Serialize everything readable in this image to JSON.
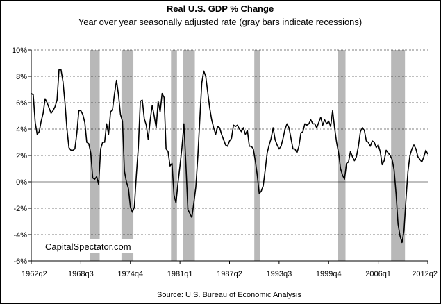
{
  "chart_data": {
    "type": "line",
    "title": "Real U.S. GDP %  Change",
    "subtitle": "Year over year seasonally adjusted rate (gray bars indicate recessions)",
    "source": "Source: U.S. Bureau of Economic Analysis",
    "watermark": "CapitalSpectator.com",
    "xlabel": "",
    "ylabel": "",
    "ylim": [
      -6,
      10
    ],
    "y_ticks": [
      -6,
      -4,
      -2,
      0,
      2,
      4,
      6,
      8,
      10
    ],
    "y_tick_labels": [
      "-6%",
      "-4%",
      "-2%",
      "0%",
      "2%",
      "4%",
      "6%",
      "8%",
      "10%"
    ],
    "x_range": [
      "1962q2",
      "2012q2"
    ],
    "x_tick_labels": [
      "1962q2",
      "1968q3",
      "1974q4",
      "1981q1",
      "1987q2",
      "1993q3",
      "1999q4",
      "2006q1",
      "2012q2"
    ],
    "grid": "horizontal",
    "line_color": "#000000",
    "recession_color": "#b8b8b8",
    "recessions": [
      {
        "start": "1969q4",
        "end": "1970q4"
      },
      {
        "start": "1973q4",
        "end": "1975q1"
      },
      {
        "start": "1980q1",
        "end": "1980q3"
      },
      {
        "start": "1981q3",
        "end": "1982q4"
      },
      {
        "start": "1990q3",
        "end": "1991q1"
      },
      {
        "start": "2001q1",
        "end": "2001q4"
      },
      {
        "start": "2007q4",
        "end": "2009q2"
      }
    ],
    "series": [
      {
        "values": [
          [
            "1962q2",
            6.7
          ],
          [
            "1962q3",
            6.6
          ],
          [
            "1962q4",
            4.5
          ],
          [
            "1963q1",
            3.6
          ],
          [
            "1963q2",
            3.8
          ],
          [
            "1963q3",
            4.6
          ],
          [
            "1963q4",
            5.2
          ],
          [
            "1964q1",
            6.3
          ],
          [
            "1964q2",
            6.0
          ],
          [
            "1964q3",
            5.6
          ],
          [
            "1964q4",
            5.2
          ],
          [
            "1965q1",
            5.4
          ],
          [
            "1965q2",
            5.7
          ],
          [
            "1965q3",
            6.2
          ],
          [
            "1965q4",
            8.5
          ],
          [
            "1966q1",
            8.5
          ],
          [
            "1966q2",
            7.6
          ],
          [
            "1966q3",
            6.0
          ],
          [
            "1966q4",
            4.0
          ],
          [
            "1967q1",
            2.6
          ],
          [
            "1967q2",
            2.4
          ],
          [
            "1967q3",
            2.4
          ],
          [
            "1967q4",
            2.5
          ],
          [
            "1968q1",
            3.7
          ],
          [
            "1968q2",
            5.4
          ],
          [
            "1968q3",
            5.4
          ],
          [
            "1968q4",
            5.1
          ],
          [
            "1969q1",
            4.5
          ],
          [
            "1969q2",
            3.0
          ],
          [
            "1969q3",
            2.9
          ],
          [
            "1969q4",
            2.2
          ],
          [
            "1970q1",
            0.3
          ],
          [
            "1970q2",
            0.2
          ],
          [
            "1970q3",
            0.4
          ],
          [
            "1970q4",
            -0.2
          ],
          [
            "1971q1",
            2.5
          ],
          [
            "1971q2",
            3.0
          ],
          [
            "1971q3",
            3.0
          ],
          [
            "1971q4",
            4.4
          ],
          [
            "1972q1",
            3.6
          ],
          [
            "1972q2",
            5.3
          ],
          [
            "1972q3",
            5.5
          ],
          [
            "1972q4",
            6.7
          ],
          [
            "1973q1",
            7.7
          ],
          [
            "1973q2",
            6.6
          ],
          [
            "1973q3",
            5.1
          ],
          [
            "1973q4",
            4.6
          ],
          [
            "1974q1",
            0.8
          ],
          [
            "1974q2",
            0.0
          ],
          [
            "1974q3",
            -0.5
          ],
          [
            "1974q4",
            -1.9
          ],
          [
            "1975q1",
            -2.3
          ],
          [
            "1975q2",
            -1.9
          ],
          [
            "1975q3",
            0.5
          ],
          [
            "1975q4",
            2.6
          ],
          [
            "1976q1",
            6.1
          ],
          [
            "1976q2",
            6.2
          ],
          [
            "1976q3",
            4.8
          ],
          [
            "1976q4",
            4.3
          ],
          [
            "1977q1",
            3.2
          ],
          [
            "1977q2",
            4.7
          ],
          [
            "1977q3",
            5.8
          ],
          [
            "1977q4",
            5.0
          ],
          [
            "1978q1",
            4.1
          ],
          [
            "1978q2",
            6.1
          ],
          [
            "1978q3",
            5.3
          ],
          [
            "1978q4",
            6.7
          ],
          [
            "1979q1",
            6.4
          ],
          [
            "1979q2",
            2.5
          ],
          [
            "1979q3",
            2.3
          ],
          [
            "1979q4",
            1.2
          ],
          [
            "1980q1",
            1.4
          ],
          [
            "1980q2",
            -1.0
          ],
          [
            "1980q3",
            -1.6
          ],
          [
            "1980q4",
            -0.1
          ],
          [
            "1981q1",
            1.2
          ],
          [
            "1981q2",
            2.6
          ],
          [
            "1981q3",
            4.4
          ],
          [
            "1981q4",
            1.3
          ],
          [
            "1982q1",
            -2.1
          ],
          [
            "1982q2",
            -2.4
          ],
          [
            "1982q3",
            -2.7
          ],
          [
            "1982q4",
            -1.6
          ],
          [
            "1983q1",
            -0.4
          ],
          [
            "1983q2",
            1.9
          ],
          [
            "1983q3",
            4.7
          ],
          [
            "1983q4",
            7.5
          ],
          [
            "1984q1",
            8.4
          ],
          [
            "1984q2",
            8.0
          ],
          [
            "1984q3",
            6.8
          ],
          [
            "1984q4",
            5.6
          ],
          [
            "1985q1",
            4.7
          ],
          [
            "1985q2",
            4.1
          ],
          [
            "1985q3",
            3.6
          ],
          [
            "1985q4",
            4.2
          ],
          [
            "1986q1",
            4.1
          ],
          [
            "1986q2",
            3.6
          ],
          [
            "1986q3",
            3.2
          ],
          [
            "1986q4",
            2.8
          ],
          [
            "1987q1",
            2.7
          ],
          [
            "1987q2",
            3.1
          ],
          [
            "1987q3",
            3.3
          ],
          [
            "1987q4",
            4.3
          ],
          [
            "1988q1",
            4.2
          ],
          [
            "1988q2",
            4.3
          ],
          [
            "1988q3",
            4.0
          ],
          [
            "1988q4",
            3.8
          ],
          [
            "1989q1",
            4.1
          ],
          [
            "1989q2",
            3.6
          ],
          [
            "1989q3",
            3.9
          ],
          [
            "1989q4",
            2.7
          ],
          [
            "1990q1",
            2.7
          ],
          [
            "1990q2",
            2.5
          ],
          [
            "1990q3",
            1.6
          ],
          [
            "1990q4",
            0.5
          ],
          [
            "1991q1",
            -0.9
          ],
          [
            "1991q2",
            -0.7
          ],
          [
            "1991q3",
            -0.3
          ],
          [
            "1991q4",
            0.9
          ],
          [
            "1992q1",
            2.2
          ],
          [
            "1992q2",
            2.8
          ],
          [
            "1992q3",
            3.3
          ],
          [
            "1992q4",
            4.1
          ],
          [
            "1993q1",
            3.2
          ],
          [
            "1993q2",
            2.8
          ],
          [
            "1993q3",
            2.5
          ],
          [
            "1993q4",
            2.7
          ],
          [
            "1994q1",
            3.3
          ],
          [
            "1994q2",
            4.0
          ],
          [
            "1994q3",
            4.4
          ],
          [
            "1994q4",
            4.1
          ],
          [
            "1995q1",
            3.3
          ],
          [
            "1995q2",
            2.5
          ],
          [
            "1995q3",
            2.5
          ],
          [
            "1995q4",
            2.2
          ],
          [
            "1996q1",
            2.7
          ],
          [
            "1996q2",
            3.7
          ],
          [
            "1996q3",
            3.8
          ],
          [
            "1996q4",
            4.4
          ],
          [
            "1997q1",
            4.3
          ],
          [
            "1997q2",
            4.4
          ],
          [
            "1997q3",
            4.7
          ],
          [
            "1997q4",
            4.4
          ],
          [
            "1998q1",
            4.4
          ],
          [
            "1998q2",
            4.1
          ],
          [
            "1998q3",
            4.5
          ],
          [
            "1998q4",
            4.9
          ],
          [
            "1999q1",
            4.3
          ],
          [
            "1999q2",
            4.7
          ],
          [
            "1999q3",
            4.4
          ],
          [
            "1999q4",
            4.6
          ],
          [
            "2000q1",
            4.2
          ],
          [
            "2000q2",
            5.4
          ],
          [
            "2000q3",
            4.1
          ],
          [
            "2000q4",
            3.0
          ],
          [
            "2001q1",
            2.2
          ],
          [
            "2001q2",
            1.0
          ],
          [
            "2001q3",
            0.5
          ],
          [
            "2001q4",
            0.2
          ],
          [
            "2002q1",
            1.4
          ],
          [
            "2002q2",
            1.5
          ],
          [
            "2002q3",
            2.3
          ],
          [
            "2002q4",
            1.9
          ],
          [
            "2003q1",
            1.6
          ],
          [
            "2003q2",
            1.9
          ],
          [
            "2003q3",
            2.7
          ],
          [
            "2003q4",
            3.8
          ],
          [
            "2004q1",
            4.1
          ],
          [
            "2004q2",
            3.9
          ],
          [
            "2004q3",
            3.1
          ],
          [
            "2004q4",
            3.0
          ],
          [
            "2005q1",
            2.7
          ],
          [
            "2005q2",
            3.1
          ],
          [
            "2005q3",
            3.0
          ],
          [
            "2005q4",
            2.6
          ],
          [
            "2006q1",
            2.8
          ],
          [
            "2006q2",
            2.3
          ],
          [
            "2006q3",
            1.3
          ],
          [
            "2006q4",
            1.6
          ],
          [
            "2007q1",
            2.4
          ],
          [
            "2007q2",
            2.2
          ],
          [
            "2007q3",
            2.0
          ],
          [
            "2007q4",
            1.7
          ],
          [
            "2008q1",
            0.9
          ],
          [
            "2008q2",
            -0.9
          ],
          [
            "2008q3",
            -3.2
          ],
          [
            "2008q4",
            -4.1
          ],
          [
            "2009q1",
            -4.6
          ],
          [
            "2009q2",
            -3.7
          ],
          [
            "2009q3",
            -1.3
          ],
          [
            "2009q4",
            0.8
          ],
          [
            "2010q1",
            2.0
          ],
          [
            "2010q2",
            2.5
          ],
          [
            "2010q3",
            2.8
          ],
          [
            "2010q4",
            2.5
          ],
          [
            "2011q1",
            1.9
          ],
          [
            "2011q2",
            1.7
          ],
          [
            "2011q3",
            1.5
          ],
          [
            "2011q4",
            1.9
          ],
          [
            "2012q1",
            2.4
          ],
          [
            "2012q2",
            2.1
          ]
        ]
      }
    ]
  }
}
